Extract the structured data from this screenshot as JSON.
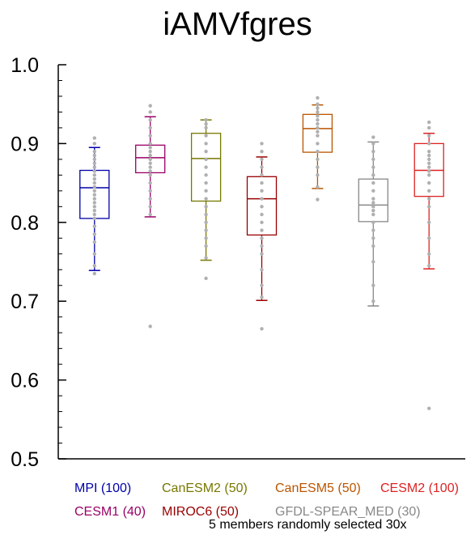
{
  "chart_data": {
    "type": "box",
    "title": "iAMVfgres",
    "xlabel": "",
    "ylabel": "",
    "ylim": [
      0.5,
      1.0
    ],
    "yticks": [
      "0.5",
      "0.6",
      "0.7",
      "0.8",
      "0.9",
      "1.0"
    ],
    "grid": false,
    "footnote": "5 members randomly selected 30x",
    "series": [
      {
        "name": "MPI (100)",
        "color": "#0000aa",
        "whisker_low": 0.739,
        "q1": 0.805,
        "median": 0.844,
        "q3": 0.866,
        "whisker_high": 0.895,
        "points": [
          0.735,
          0.745,
          0.76,
          0.775,
          0.785,
          0.795,
          0.805,
          0.81,
          0.815,
          0.82,
          0.825,
          0.83,
          0.835,
          0.84,
          0.845,
          0.85,
          0.855,
          0.86,
          0.865,
          0.87,
          0.875,
          0.88,
          0.885,
          0.89,
          0.9,
          0.907
        ]
      },
      {
        "name": "CESM1 (40)",
        "color": "#990066",
        "whisker_low": 0.807,
        "q1": 0.863,
        "median": 0.882,
        "q3": 0.898,
        "whisker_high": 0.934,
        "points": [
          0.668,
          0.81,
          0.82,
          0.83,
          0.84,
          0.85,
          0.86,
          0.865,
          0.87,
          0.875,
          0.88,
          0.885,
          0.89,
          0.895,
          0.9,
          0.91,
          0.92,
          0.93,
          0.94,
          0.948
        ]
      },
      {
        "name": "CanESM2 (50)",
        "color": "#777700",
        "whisker_low": 0.752,
        "q1": 0.827,
        "median": 0.881,
        "q3": 0.913,
        "whisker_high": 0.93,
        "points": [
          0.729,
          0.755,
          0.77,
          0.78,
          0.79,
          0.8,
          0.81,
          0.82,
          0.83,
          0.84,
          0.85,
          0.86,
          0.87,
          0.88,
          0.89,
          0.9,
          0.91,
          0.92,
          0.925,
          0.93
        ]
      },
      {
        "name": "MIROC6 (50)",
        "color": "#990000",
        "whisker_low": 0.701,
        "q1": 0.784,
        "median": 0.83,
        "q3": 0.858,
        "whisker_high": 0.883,
        "points": [
          0.665,
          0.705,
          0.72,
          0.74,
          0.76,
          0.77,
          0.78,
          0.79,
          0.8,
          0.81,
          0.82,
          0.83,
          0.84,
          0.85,
          0.86,
          0.87,
          0.88,
          0.89,
          0.9
        ]
      },
      {
        "name": "CanESM5 (50)",
        "color": "#bb5500",
        "whisker_low": 0.843,
        "q1": 0.889,
        "median": 0.919,
        "q3": 0.937,
        "whisker_high": 0.949,
        "points": [
          0.829,
          0.845,
          0.86,
          0.87,
          0.88,
          0.89,
          0.9,
          0.91,
          0.915,
          0.92,
          0.925,
          0.93,
          0.935,
          0.94,
          0.945,
          0.95,
          0.958
        ]
      },
      {
        "name": "GFDL-SPEAR_MED (30)",
        "color": "#888888",
        "whisker_low": 0.694,
        "q1": 0.801,
        "median": 0.822,
        "q3": 0.855,
        "whisker_high": 0.902,
        "points": [
          0.7,
          0.72,
          0.75,
          0.77,
          0.78,
          0.79,
          0.8,
          0.81,
          0.815,
          0.82,
          0.825,
          0.83,
          0.84,
          0.85,
          0.86,
          0.87,
          0.88,
          0.89,
          0.9,
          0.908
        ]
      },
      {
        "name": "CESM2 (100)",
        "color": "#dd2222",
        "whisker_low": 0.741,
        "q1": 0.833,
        "median": 0.866,
        "q3": 0.9,
        "whisker_high": 0.913,
        "points": [
          0.564,
          0.745,
          0.76,
          0.78,
          0.8,
          0.82,
          0.83,
          0.84,
          0.85,
          0.86,
          0.865,
          0.87,
          0.875,
          0.88,
          0.885,
          0.89,
          0.9,
          0.91,
          0.92,
          0.927
        ]
      }
    ]
  }
}
